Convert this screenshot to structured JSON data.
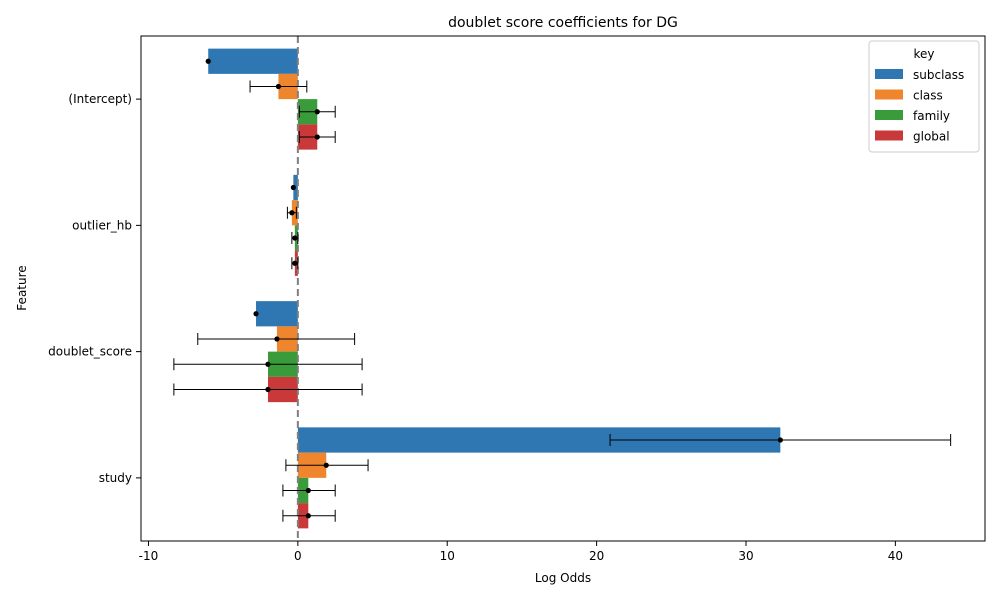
{
  "chart_data": {
    "type": "bar",
    "orientation": "horizontal",
    "title": "doublet score coefficients for DG",
    "xlabel": "Log Odds",
    "ylabel": "Feature",
    "xlim": [
      -10.5,
      46
    ],
    "xticks": [
      -10,
      0,
      10,
      20,
      30,
      40
    ],
    "categories": [
      "(Intercept)",
      "outlier_hb",
      "doublet_score",
      "study"
    ],
    "reference_line_x": 0,
    "legend": {
      "title": "key",
      "position": "top-right"
    },
    "series": [
      {
        "name": "subclass",
        "color": "#2e77b2",
        "values": [
          -6.0,
          -0.3,
          -2.8,
          32.3
        ],
        "ci_low": [
          -6.0,
          -0.3,
          -2.8,
          20.9
        ],
        "ci_high": [
          -6.0,
          -0.3,
          -2.8,
          43.7
        ]
      },
      {
        "name": "class",
        "color": "#ef862d",
        "values": [
          -1.3,
          -0.4,
          -1.4,
          1.9
        ],
        "ci_low": [
          -3.2,
          -0.7,
          -6.7,
          -0.8
        ],
        "ci_high": [
          0.6,
          -0.1,
          3.8,
          4.7
        ]
      },
      {
        "name": "family",
        "color": "#3a9b3a",
        "values": [
          1.3,
          -0.2,
          -2.0,
          0.7
        ],
        "ci_low": [
          0.1,
          -0.4,
          -8.3,
          -1.0
        ],
        "ci_high": [
          2.5,
          0.0,
          4.3,
          2.5
        ]
      },
      {
        "name": "global",
        "color": "#c9393a",
        "values": [
          1.3,
          -0.2,
          -2.0,
          0.7
        ],
        "ci_low": [
          0.1,
          -0.4,
          -8.3,
          -1.0
        ],
        "ci_high": [
          2.5,
          0.0,
          4.3,
          2.5
        ]
      }
    ]
  }
}
